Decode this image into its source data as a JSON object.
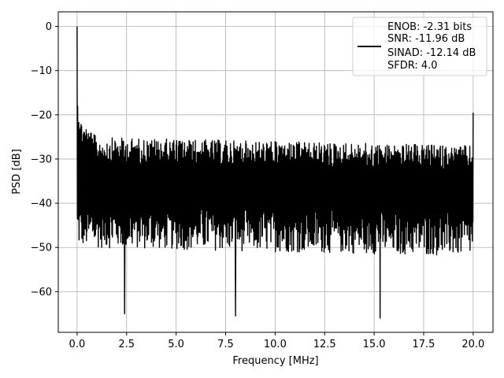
{
  "chart_data": {
    "type": "line",
    "title": "",
    "xlabel": "Frequency [MHz]",
    "ylabel": "PSD [dB]",
    "xlim": [
      -0.95,
      21.0
    ],
    "ylim": [
      -69.2,
      3.3
    ],
    "xticks": [
      0.0,
      2.5,
      5.0,
      7.5,
      10.0,
      12.5,
      15.0,
      17.5,
      20.0
    ],
    "xtick_labels": [
      "0.0",
      "2.5",
      "5.0",
      "7.5",
      "10.0",
      "12.5",
      "15.0",
      "17.5",
      "20.0"
    ],
    "yticks": [
      0,
      -10,
      -20,
      -30,
      -40,
      -50,
      -60
    ],
    "ytick_labels": [
      "0",
      "−10",
      "−20",
      "−30",
      "−40",
      "−50",
      "−60"
    ],
    "grid": true,
    "legend_placement": "top-right",
    "series": [
      {
        "color": "#000000",
        "peak": {
          "x": 0.0,
          "y": 0.0
        },
        "spurs": [
          {
            "x": 2.4,
            "y": -65.0
          },
          {
            "x": 8.0,
            "y": -65.5
          },
          {
            "x": 15.3,
            "y": -66.0
          },
          {
            "x": 20.0,
            "y": -19.5
          }
        ],
        "upper_envelope_db": -25,
        "lower_envelope_db": -50,
        "x_range": [
          0.0,
          20.0
        ]
      }
    ],
    "legend_lines": [
      "ENOB: -2.31 bits",
      "SNR: -11.96 dB",
      "SINAD: -12.14 dB",
      "SFDR: 4.0"
    ]
  }
}
